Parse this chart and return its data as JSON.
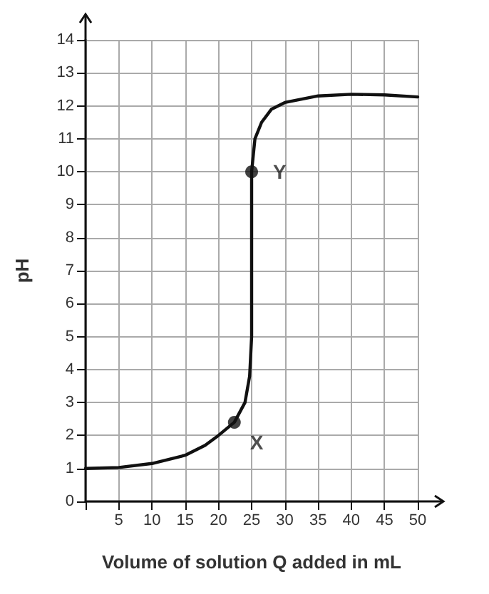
{
  "chart_data": {
    "type": "line",
    "xlabel": "Volume of solution Q added in mL",
    "ylabel": "pH",
    "xlim": [
      0,
      50
    ],
    "ylim": [
      0,
      14
    ],
    "xticks": [
      {
        "value": 0,
        "label": null
      },
      5,
      10,
      15,
      20,
      25,
      30,
      35,
      40,
      45,
      50
    ],
    "yticks": [
      0,
      1,
      2,
      3,
      4,
      5,
      6,
      7,
      8,
      9,
      10,
      11,
      12,
      13,
      14
    ],
    "grid": true,
    "series": [
      {
        "color": "#111111",
        "marker": "none",
        "line_style": "solid",
        "x": [
          0,
          5,
          10,
          15,
          18,
          20,
          22.4,
          24,
          24.7,
          25,
          25,
          25,
          25.5,
          26.5,
          28,
          30,
          35,
          40,
          45,
          50
        ],
        "values": [
          1,
          1.03,
          1.15,
          1.4,
          1.7,
          2,
          2.4,
          3,
          3.8,
          5,
          7,
          10,
          11,
          11.5,
          11.9,
          12.1,
          12.3,
          12.35,
          12.33,
          12.27
        ]
      },
      {
        "type": "scatter",
        "color": "#111111",
        "marker": "circle",
        "x": [
          22.4,
          25
        ],
        "values": [
          2.4,
          10
        ]
      }
    ],
    "annotations": [
      {
        "text": "X",
        "x": 22.4,
        "y": 2.4
      },
      {
        "text": "Y",
        "x": 25,
        "y": 10
      }
    ]
  }
}
